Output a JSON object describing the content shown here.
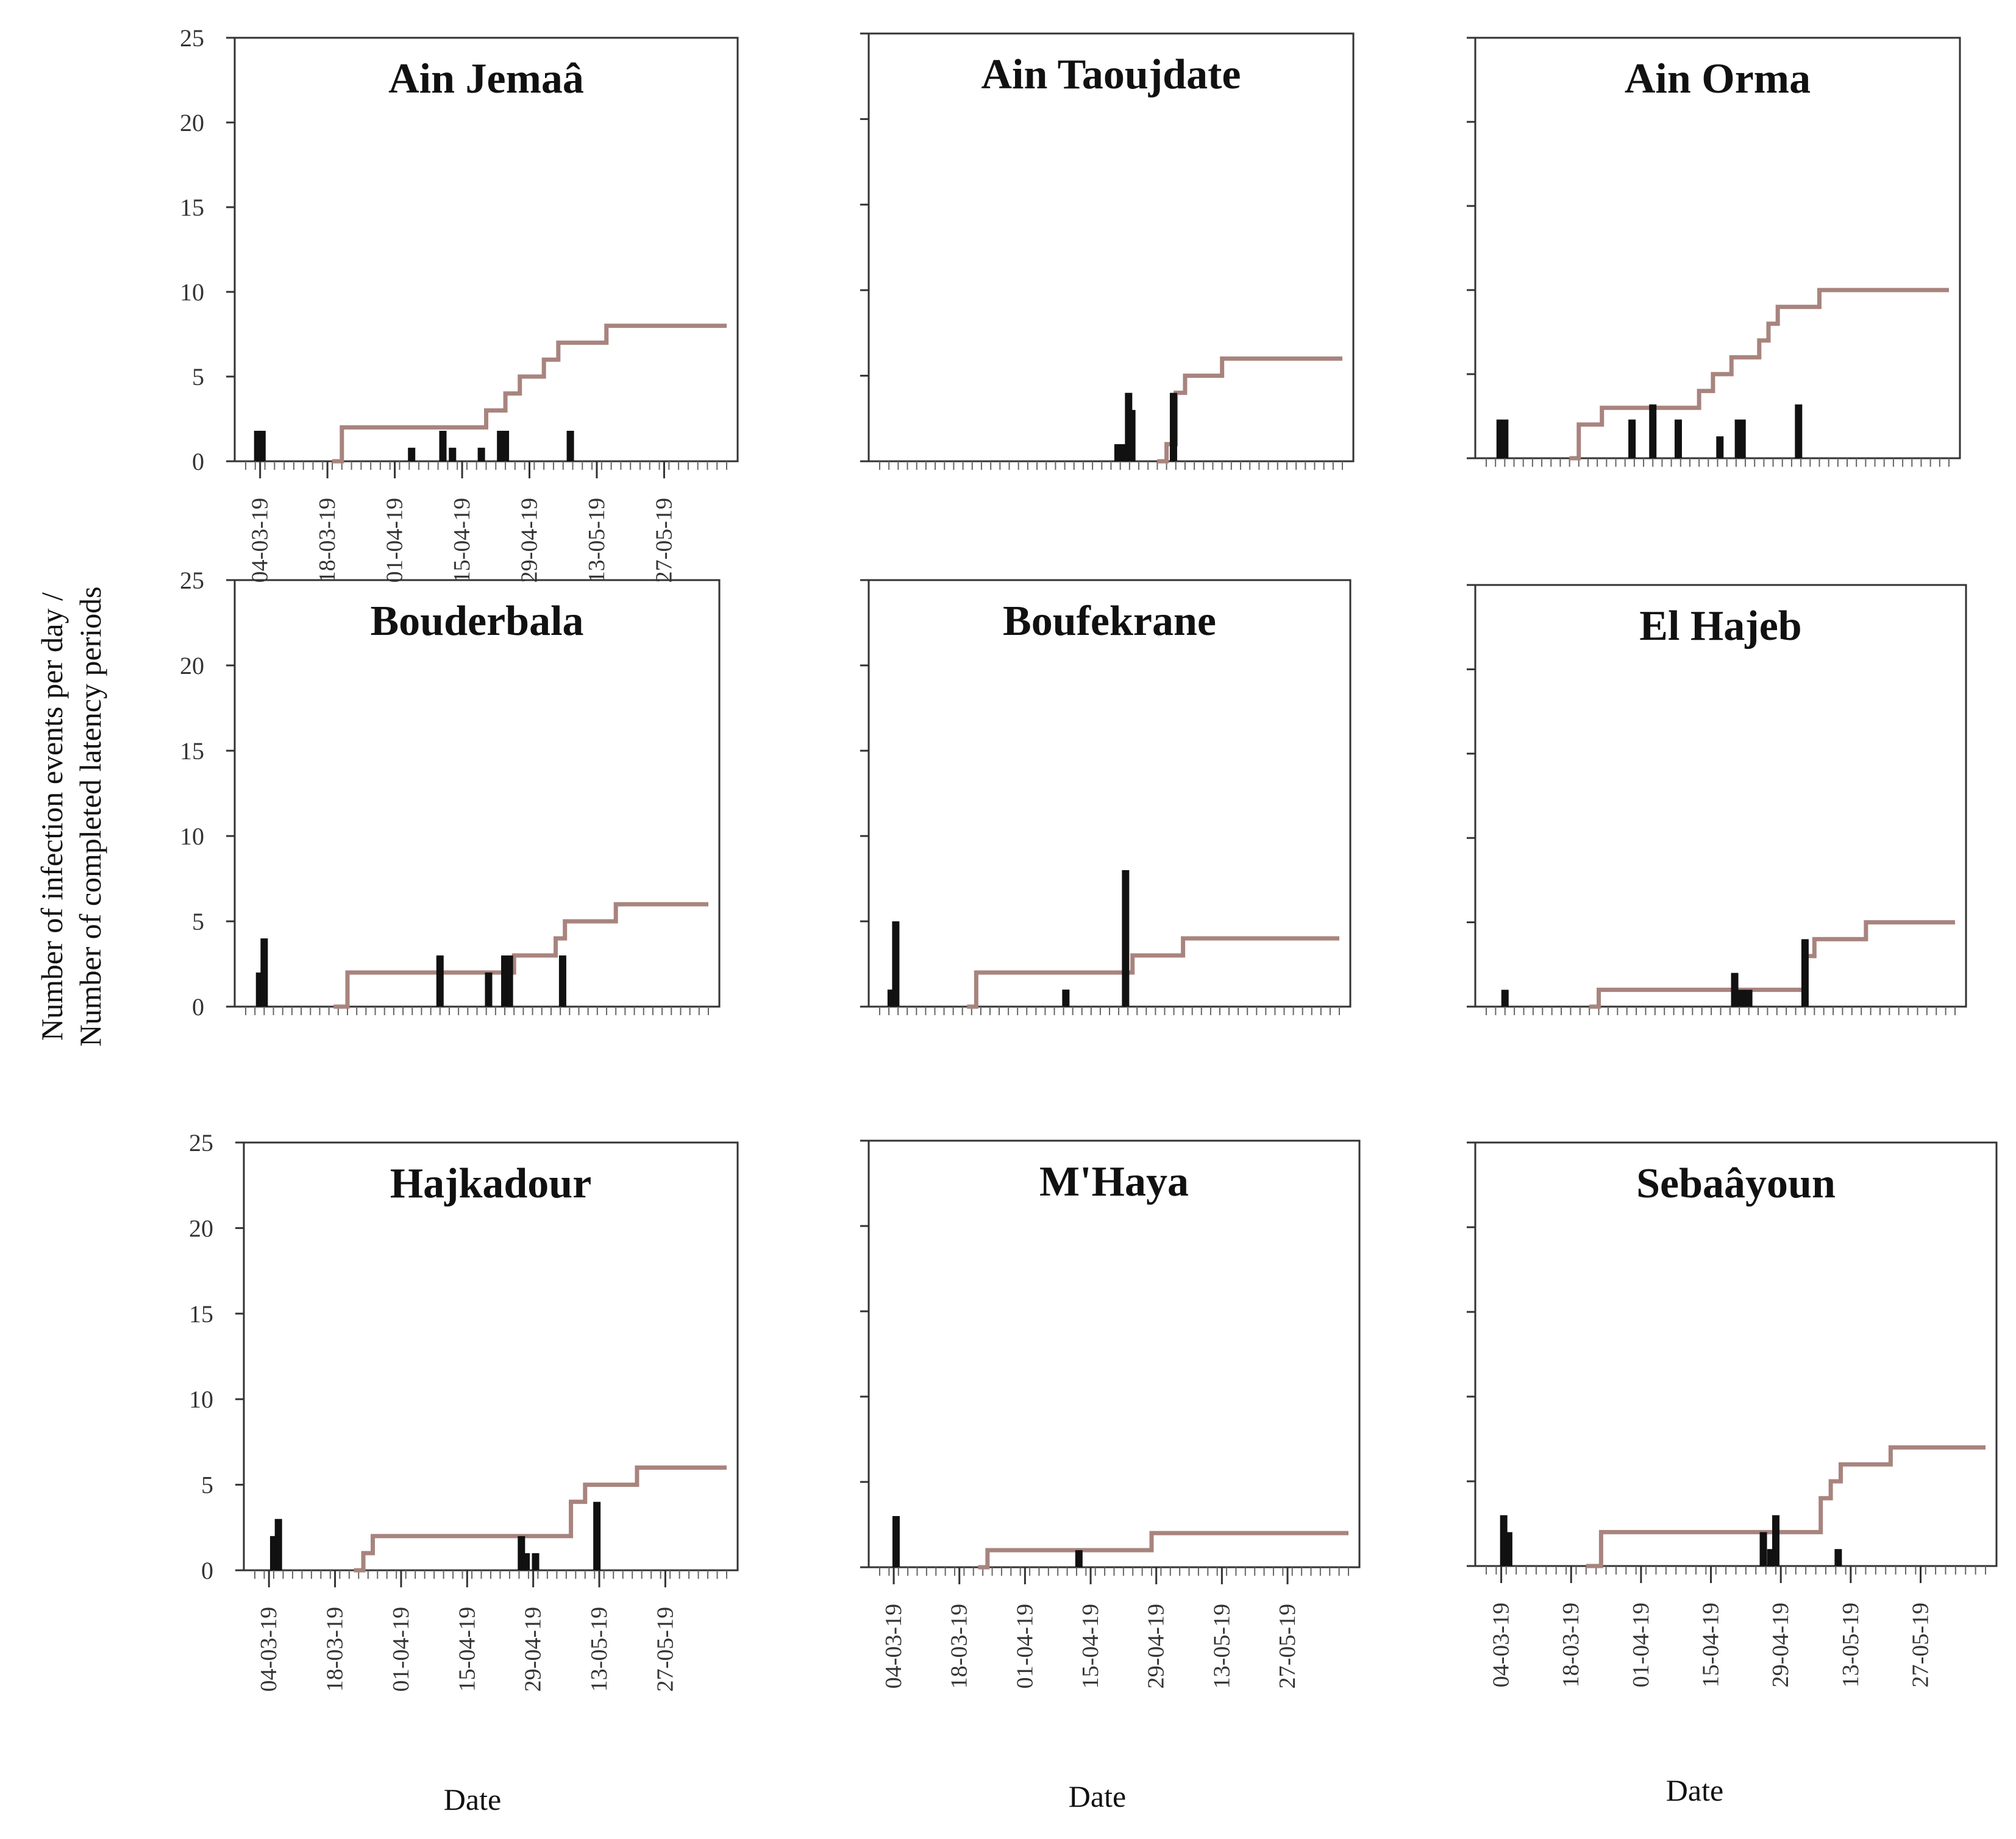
{
  "figure": {
    "ylabel_line1": "Number of infection events per day /",
    "ylabel_line2": "Number of completed latency periods",
    "xlabel": "Date",
    "colors": {
      "events": "#111111",
      "latency": "#a8847e",
      "frame": "#333333",
      "text": "#111111"
    }
  },
  "chart_data": [
    {
      "type": "bar",
      "title": "Ain Jemaâ",
      "ylim": [
        0,
        25
      ],
      "yticks": [
        0,
        5,
        10,
        15,
        20,
        25
      ],
      "xlim_days": [
        0,
        100
      ],
      "date_ticks": [
        "04-03-19",
        "18-03-19",
        "01-04-19",
        "15-04-19",
        "29-04-19",
        "13-05-19",
        "27-05-19"
      ],
      "date_tick_days": [
        3,
        17,
        31,
        45,
        59,
        73,
        87
      ],
      "infection_events": [
        {
          "day": 2.5,
          "value": 1.8
        },
        {
          "day": 3.4,
          "value": 1.8
        },
        {
          "day": 34.5,
          "value": 0.8
        },
        {
          "day": 41.0,
          "value": 1.8
        },
        {
          "day": 43.0,
          "value": 0.8
        },
        {
          "day": 49.0,
          "value": 0.8
        },
        {
          "day": 53.0,
          "value": 1.8
        },
        {
          "day": 54.0,
          "value": 1.8
        },
        {
          "day": 67.5,
          "value": 1.8
        }
      ],
      "latency_steps": [
        {
          "day": 18,
          "value": 0
        },
        {
          "day": 20,
          "value": 2
        },
        {
          "day": 50,
          "value": 3
        },
        {
          "day": 54,
          "value": 4
        },
        {
          "day": 57,
          "value": 5
        },
        {
          "day": 62,
          "value": 6
        },
        {
          "day": 65,
          "value": 7
        },
        {
          "day": 75,
          "value": 8
        }
      ]
    },
    {
      "type": "bar",
      "title": "Ain Taoujdate",
      "ylim": [
        0,
        25
      ],
      "yticks": [
        0,
        5,
        10,
        15,
        20,
        25
      ],
      "xlim_days": [
        0,
        100
      ],
      "date_ticks": [],
      "date_tick_days": [],
      "infection_events": [
        {
          "day": 51.5,
          "value": 1
        },
        {
          "day": 53.0,
          "value": 1
        },
        {
          "day": 53.8,
          "value": 4
        },
        {
          "day": 54.5,
          "value": 3
        },
        {
          "day": 63.5,
          "value": 4
        }
      ],
      "latency_steps": [
        {
          "day": 60,
          "value": 0
        },
        {
          "day": 62,
          "value": 1
        },
        {
          "day": 64,
          "value": 4
        },
        {
          "day": 66,
          "value": 5
        },
        {
          "day": 74,
          "value": 6
        }
      ]
    },
    {
      "type": "bar",
      "title": "Ain Orma",
      "ylim": [
        0,
        25
      ],
      "yticks": [
        0,
        5,
        10,
        15,
        20,
        25
      ],
      "xlim_days": [
        0,
        100
      ],
      "date_ticks": [],
      "date_tick_days": [],
      "infection_events": [
        {
          "day": 3.0,
          "value": 2.3
        },
        {
          "day": 4.0,
          "value": 2.3
        },
        {
          "day": 31.5,
          "value": 2.3
        },
        {
          "day": 36.0,
          "value": 3.2
        },
        {
          "day": 41.5,
          "value": 2.3
        },
        {
          "day": 50.5,
          "value": 1.3
        },
        {
          "day": 54.5,
          "value": 2.3
        },
        {
          "day": 55.3,
          "value": 2.3
        },
        {
          "day": 67.5,
          "value": 3.2
        }
      ],
      "latency_steps": [
        {
          "day": 18,
          "value": 0
        },
        {
          "day": 20,
          "value": 2
        },
        {
          "day": 25,
          "value": 3
        },
        {
          "day": 46,
          "value": 4
        },
        {
          "day": 49,
          "value": 5
        },
        {
          "day": 53,
          "value": 6
        },
        {
          "day": 59,
          "value": 7
        },
        {
          "day": 61,
          "value": 8
        },
        {
          "day": 63,
          "value": 9
        },
        {
          "day": 72,
          "value": 10
        }
      ]
    },
    {
      "type": "bar",
      "title": "Bouderbala",
      "ylim": [
        0,
        25
      ],
      "yticks": [
        0,
        5,
        10,
        15,
        20,
        25
      ],
      "xlim_days": [
        0,
        100
      ],
      "date_ticks": [],
      "date_tick_days": [],
      "infection_events": [
        {
          "day": 3.0,
          "value": 2
        },
        {
          "day": 4.0,
          "value": 4
        },
        {
          "day": 42.0,
          "value": 3
        },
        {
          "day": 52.5,
          "value": 2
        },
        {
          "day": 56.0,
          "value": 3
        },
        {
          "day": 57.0,
          "value": 3
        },
        {
          "day": 68.5,
          "value": 3
        }
      ],
      "latency_steps": [
        {
          "day": 19,
          "value": 0
        },
        {
          "day": 22,
          "value": 2
        },
        {
          "day": 58,
          "value": 3
        },
        {
          "day": 67,
          "value": 4
        },
        {
          "day": 69,
          "value": 5
        },
        {
          "day": 80,
          "value": 6
        }
      ]
    },
    {
      "type": "bar",
      "title": "Boufekrane",
      "ylim": [
        0,
        25
      ],
      "yticks": [
        0,
        5,
        10,
        15,
        20,
        25
      ],
      "xlim_days": [
        0,
        100
      ],
      "date_ticks": [],
      "date_tick_days": [],
      "infection_events": [
        {
          "day": 2.5,
          "value": 1
        },
        {
          "day": 3.5,
          "value": 5
        },
        {
          "day": 40.5,
          "value": 1
        },
        {
          "day": 53.5,
          "value": 8
        }
      ],
      "latency_steps": [
        {
          "day": 19,
          "value": 0
        },
        {
          "day": 21,
          "value": 2
        },
        {
          "day": 55,
          "value": 3
        },
        {
          "day": 66,
          "value": 4
        }
      ]
    },
    {
      "type": "bar",
      "title": "El Hajeb",
      "ylim": [
        0,
        25
      ],
      "yticks": [
        0,
        5,
        10,
        15,
        20,
        25
      ],
      "xlim_days": [
        0,
        100
      ],
      "date_ticks": [],
      "date_tick_days": [],
      "infection_events": [
        {
          "day": 4.0,
          "value": 1
        },
        {
          "day": 53.0,
          "value": 2
        },
        {
          "day": 54.5,
          "value": 1
        },
        {
          "day": 56.0,
          "value": 1
        },
        {
          "day": 68.0,
          "value": 4
        }
      ],
      "latency_steps": [
        {
          "day": 22,
          "value": 0
        },
        {
          "day": 24,
          "value": 1
        },
        {
          "day": 68,
          "value": 3
        },
        {
          "day": 70,
          "value": 4
        },
        {
          "day": 81,
          "value": 5
        }
      ]
    },
    {
      "type": "bar",
      "title": "Hajkadour",
      "ylim": [
        0,
        25
      ],
      "yticks": [
        0,
        5,
        10,
        15,
        20,
        25
      ],
      "xlim_days": [
        0,
        100
      ],
      "date_ticks": [
        "04-03-19",
        "18-03-19",
        "01-04-19",
        "15-04-19",
        "29-04-19",
        "13-05-19",
        "27-05-19"
      ],
      "date_tick_days": [
        3,
        17,
        31,
        45,
        59,
        73,
        87
      ],
      "infection_events": [
        {
          "day": 4.0,
          "value": 2
        },
        {
          "day": 5.0,
          "value": 3
        },
        {
          "day": 56.5,
          "value": 2
        },
        {
          "day": 57.5,
          "value": 1
        },
        {
          "day": 59.5,
          "value": 1
        },
        {
          "day": 72.5,
          "value": 4
        }
      ],
      "latency_steps": [
        {
          "day": 21,
          "value": 0
        },
        {
          "day": 23,
          "value": 1
        },
        {
          "day": 25,
          "value": 2
        },
        {
          "day": 67,
          "value": 4
        },
        {
          "day": 70,
          "value": 5
        },
        {
          "day": 81,
          "value": 6
        }
      ]
    },
    {
      "type": "bar",
      "title": "M'Haya",
      "ylim": [
        0,
        25
      ],
      "yticks": [
        0,
        5,
        10,
        15,
        20,
        25
      ],
      "xlim_days": [
        0,
        100
      ],
      "date_ticks": [
        "04-03-19",
        "18-03-19",
        "01-04-19",
        "15-04-19",
        "29-04-19",
        "13-05-19",
        "27-05-19"
      ],
      "date_tick_days": [
        3,
        17,
        31,
        45,
        59,
        73,
        87
      ],
      "infection_events": [
        {
          "day": 3.5,
          "value": 3
        },
        {
          "day": 42.5,
          "value": 1
        }
      ],
      "latency_steps": [
        {
          "day": 21,
          "value": 0
        },
        {
          "day": 23,
          "value": 1
        },
        {
          "day": 58,
          "value": 2
        }
      ]
    },
    {
      "type": "bar",
      "title": "Sebaâyoun",
      "ylim": [
        0,
        25
      ],
      "yticks": [
        0,
        5,
        10,
        15,
        20,
        25
      ],
      "xlim_days": [
        0,
        100
      ],
      "date_ticks": [
        "04-03-19",
        "18-03-19",
        "01-04-19",
        "15-04-19",
        "29-04-19",
        "13-05-19",
        "27-05-19"
      ],
      "date_tick_days": [
        3,
        17,
        31,
        45,
        59,
        73,
        87
      ],
      "infection_events": [
        {
          "day": 3.5,
          "value": 3
        },
        {
          "day": 4.5,
          "value": 2
        },
        {
          "day": 55.5,
          "value": 2
        },
        {
          "day": 57.0,
          "value": 1
        },
        {
          "day": 58.0,
          "value": 3
        },
        {
          "day": 70.5,
          "value": 1
        }
      ],
      "latency_steps": [
        {
          "day": 20,
          "value": 0
        },
        {
          "day": 23,
          "value": 2
        },
        {
          "day": 67,
          "value": 4
        },
        {
          "day": 69,
          "value": 5
        },
        {
          "day": 71,
          "value": 6
        },
        {
          "day": 81,
          "value": 7
        }
      ]
    }
  ]
}
